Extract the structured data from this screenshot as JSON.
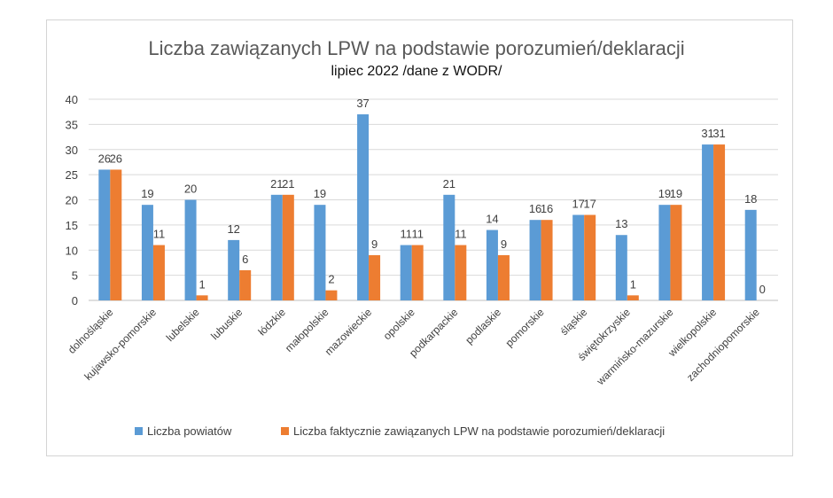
{
  "chart_data": {
    "type": "bar",
    "title": "Liczba zawiązanych LPW na podstawie porozumień/deklaracji",
    "subtitle": "lipiec 2022 /dane z WODR/",
    "categories": [
      "dolnośląskie",
      "kujawsko-pomorskie",
      "lubelskie",
      "lubuskie",
      "łódzkie",
      "małopolskie",
      "mazowieckie",
      "opolskie",
      "podkarpackie",
      "podlaskie",
      "pomorskie",
      "śląskie",
      "świętokrzyskie",
      "warmińsko-mazurskie",
      "wielkopolskie",
      "zachodniopomorskie"
    ],
    "series": [
      {
        "name": "Liczba powiatów",
        "color": "#5b9bd5",
        "values": [
          26,
          19,
          20,
          12,
          21,
          19,
          37,
          11,
          21,
          14,
          16,
          17,
          13,
          19,
          31,
          18
        ]
      },
      {
        "name": "Liczba faktycznie zawiązanych LPW na podstawie porozumień/deklaracji",
        "color": "#ed7d31",
        "values": [
          26,
          11,
          1,
          6,
          21,
          2,
          9,
          11,
          11,
          9,
          16,
          17,
          1,
          19,
          31,
          0
        ]
      }
    ],
    "ylim": [
      0,
      40
    ],
    "yticks": [
      0,
      5,
      10,
      15,
      20,
      25,
      30,
      35,
      40
    ],
    "grid": true,
    "legend": "bottom"
  }
}
